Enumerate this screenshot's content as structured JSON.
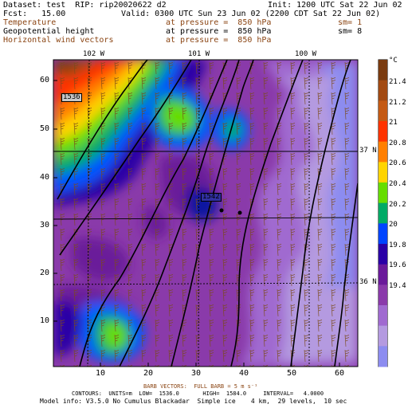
{
  "header": {
    "dataset": "Dataset: test  RIP: rip20020622 d2",
    "init": "Init: 1200 UTC Sat 22 Jun 02",
    "fcst": "Fcst:   15.00",
    "valid": "Valid: 0300 UTC Sun 23 Jun 02 (2200 CDT Sat 22 Jun 02)",
    "fields": [
      {
        "name": "Temperature",
        "level": "at pressure =  850 hPa",
        "sm": "sm= 1",
        "color": "#8b4513"
      },
      {
        "name": "Geopotential height",
        "level": "at pressure =  850 hPa",
        "sm": "sm= 8",
        "color": "#000000"
      },
      {
        "name": "Horizontal wind vectors",
        "level": "at pressure =  850 hPa",
        "sm": "",
        "color": "#8b4513"
      }
    ]
  },
  "map": {
    "longitudes": [
      "102 W",
      "101 W",
      "100 W"
    ],
    "latitudes": [
      "37 N",
      "36 N"
    ],
    "x_ticks": [
      "10",
      "20",
      "30",
      "40",
      "50",
      "60"
    ],
    "y_ticks": [
      "10",
      "20",
      "30",
      "40",
      "50",
      "60"
    ],
    "contour_labels": [
      "1536",
      "1542"
    ],
    "colorbar": {
      "unit": "°C",
      "labels": [
        "21.4",
        "21.2",
        "21",
        "20.8",
        "20.6",
        "20.4",
        "20.2",
        "20",
        "19.8",
        "19.6",
        "19.4"
      ],
      "colors": [
        "#7a3b10",
        "#a24a12",
        "#c45a14",
        "#ff3300",
        "#ff7f00",
        "#ffd400",
        "#66dd00",
        "#00aa66",
        "#0044ff",
        "#2a00a6",
        "#6a1a9a",
        "#8a3aaa",
        "#a06ad0",
        "#b49ae0",
        "#8c8cf0"
      ]
    }
  },
  "footer": {
    "barb": "BARB VECTORS:  FULL BARB = 5 m s⁻¹",
    "contours": "CONTOURS:  UNITS=m  LOW=  1536.0       HIGH=  1584.0     INTERVAL=   4.0000",
    "model": "Model info: V3.5.0 No Cumulus Blackadar  Simple ice    4 km,  29 levels,  10 sec"
  }
}
